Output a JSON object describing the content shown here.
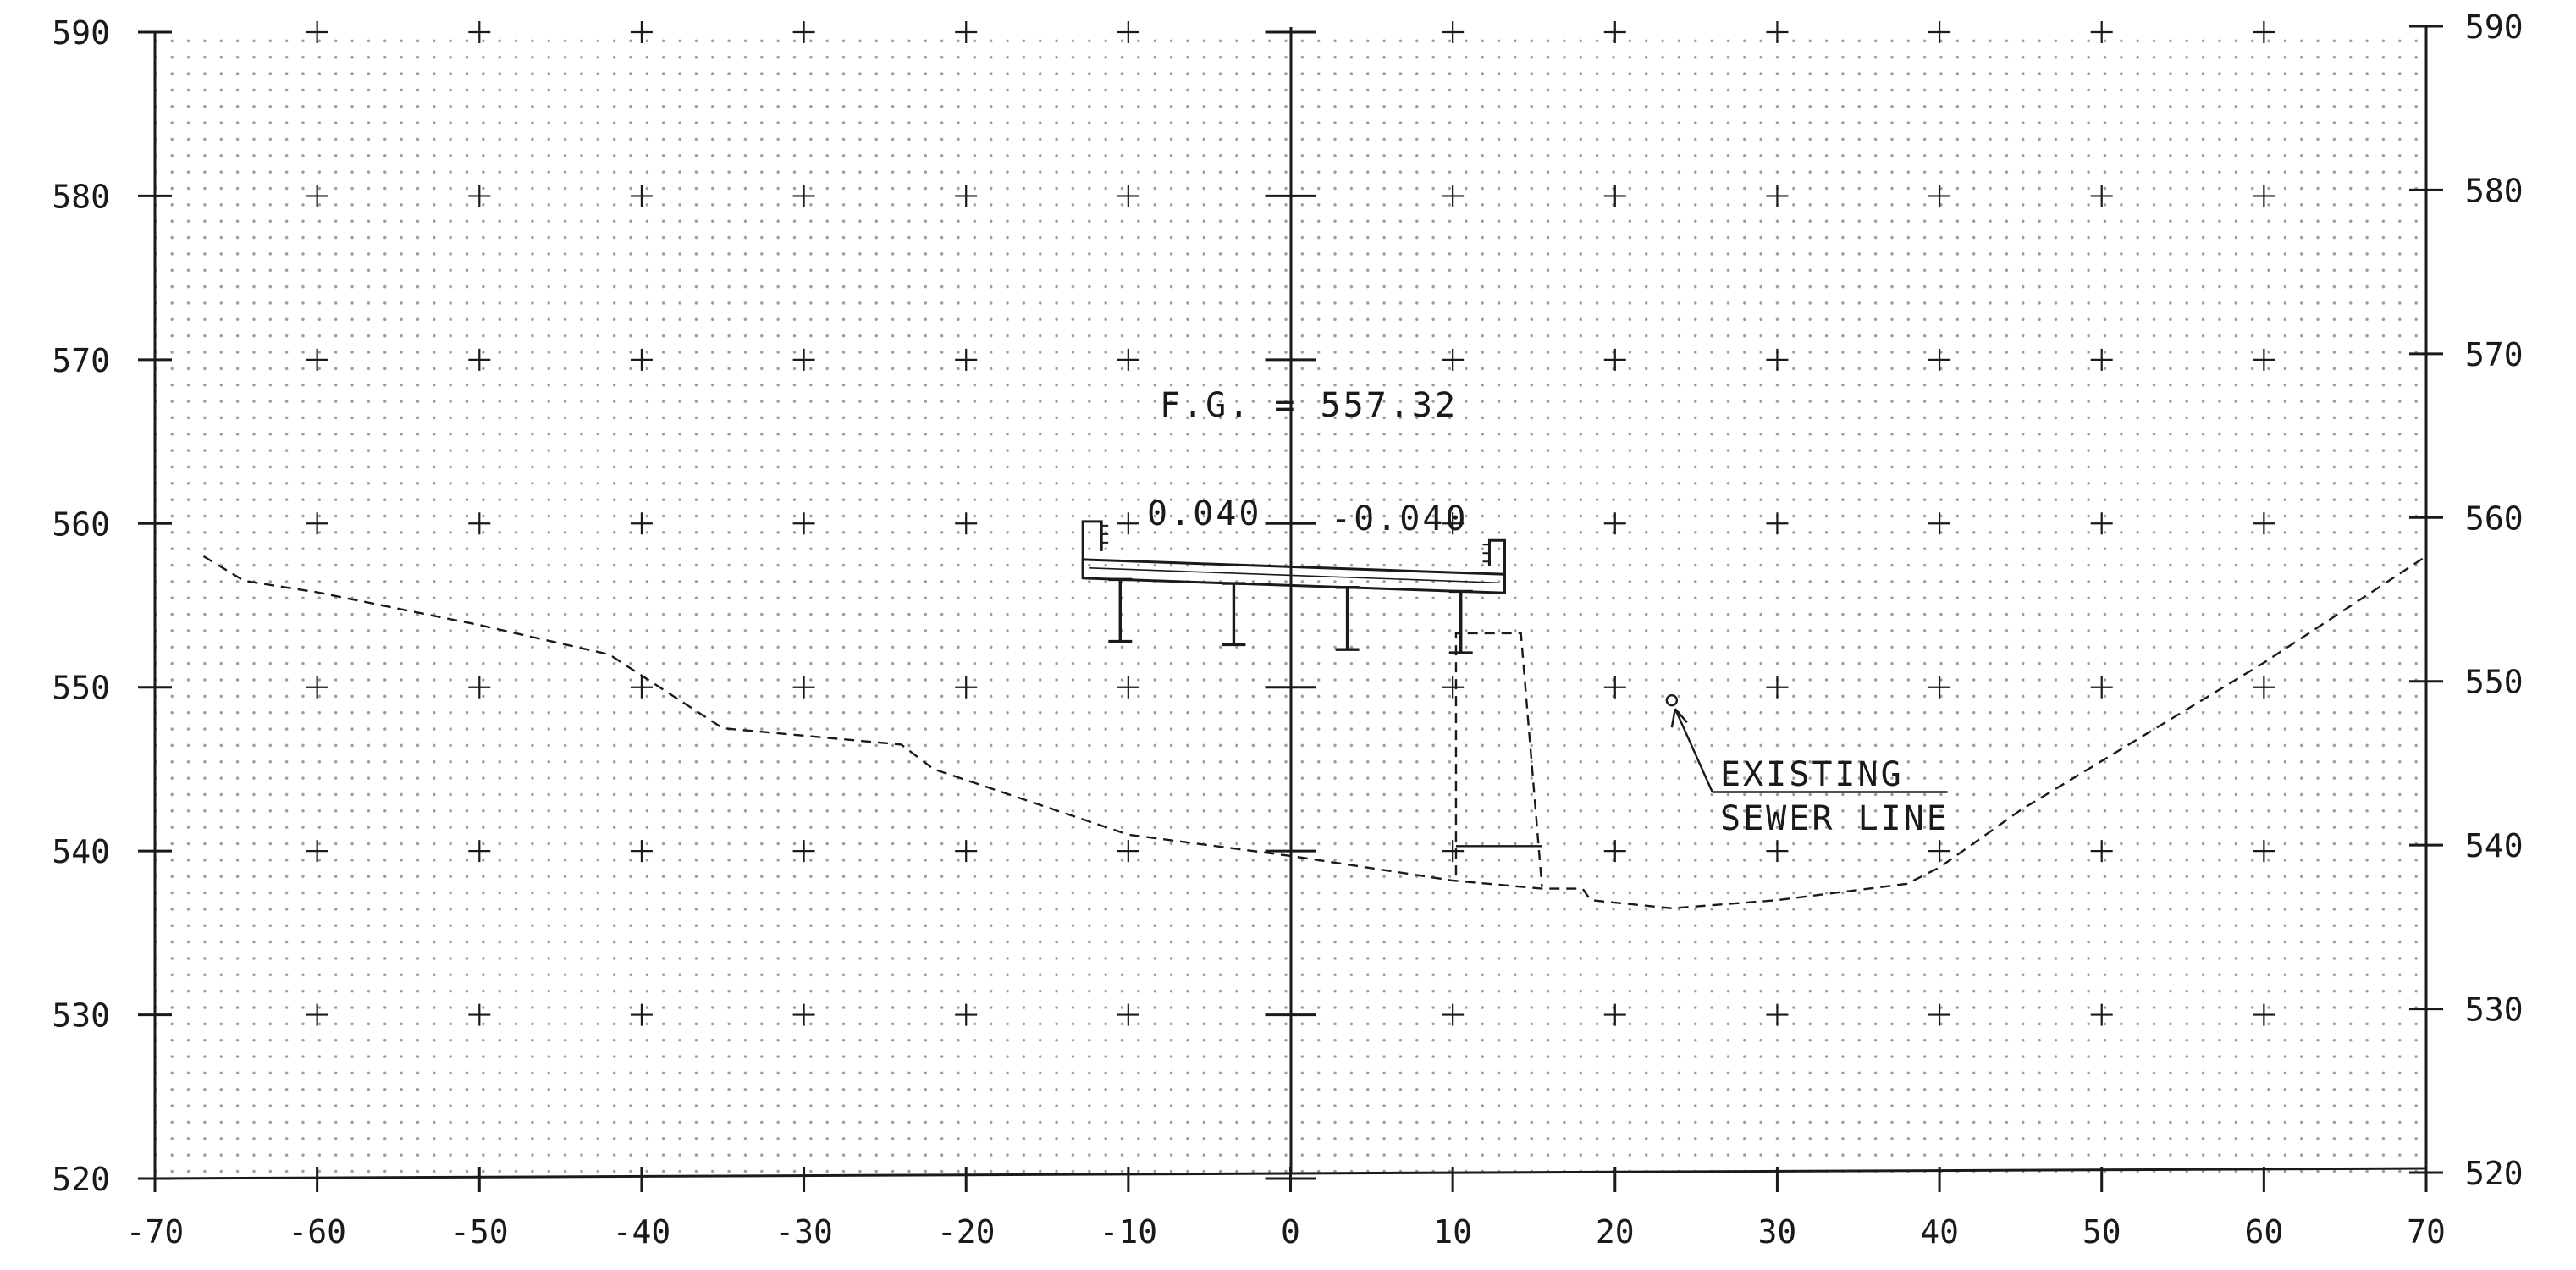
{
  "chart_data": {
    "type": "line",
    "title": "",
    "xlabel": "",
    "ylabel": "",
    "xlim": [
      -70,
      70
    ],
    "ylim": [
      520,
      590
    ],
    "x_ticks": [
      "-70",
      "-60",
      "-50",
      "-40",
      "-30",
      "-20",
      "-10",
      "0",
      "10",
      "20",
      "30",
      "40",
      "50",
      "60",
      "70"
    ],
    "y_ticks": [
      "520",
      "530",
      "540",
      "550",
      "560",
      "570",
      "580",
      "590"
    ],
    "grid": "dotted with + markers every 10 units",
    "series": [
      {
        "values_description": "existing ground profile (dashed)",
        "points": [
          [
            -67,
            558
          ],
          [
            -64.5,
            556.5
          ],
          [
            -60,
            555.8
          ],
          [
            -50,
            553.8
          ],
          [
            -42,
            552
          ],
          [
            -35,
            547.5
          ],
          [
            -24,
            546.5
          ],
          [
            -22,
            545
          ],
          [
            -10,
            541
          ],
          [
            0,
            539.7
          ],
          [
            10,
            538.2
          ],
          [
            15.5,
            537.7
          ],
          [
            18,
            537.7
          ],
          [
            18.5,
            537
          ],
          [
            23.5,
            536.5
          ],
          [
            30,
            537
          ],
          [
            38,
            538
          ],
          [
            40,
            539
          ],
          [
            45,
            542.5
          ],
          [
            50,
            545.5
          ],
          [
            55,
            548.5
          ],
          [
            60,
            551.5
          ],
          [
            70,
            558
          ]
        ]
      }
    ],
    "sewer_trench": {
      "left_x": 10.2,
      "right_x": 14.2,
      "top_y": 553.3,
      "bottom_y": 538.5,
      "base_line": [
        [
          10.2,
          540.3
        ],
        [
          15.5,
          540.3
        ]
      ]
    },
    "bridge_deck": {
      "left_x": -12.8,
      "right_x": 13.2,
      "top_left_y": 557.8,
      "top_right_y": 556.9,
      "crown_x": 0,
      "girders_x": [
        -10.5,
        -3.5,
        3.5,
        10.5
      ],
      "girder_bottom_y": [
        552.8,
        552.6,
        552.3,
        552.1
      ]
    },
    "annotations": [
      {
        "text": "F.G. = 557.32",
        "x": -8,
        "y": 567.5
      },
      {
        "text": "0.040",
        "x": -9,
        "y": 560.3
      },
      {
        "text": "-0.040",
        "x": 2.5,
        "y": 560.3
      },
      {
        "text": "EXISTING",
        "x": 26.5,
        "y": 544.6
      },
      {
        "text": "SEWER LINE",
        "x": 26.5,
        "y": 541.9
      }
    ],
    "leader": {
      "from": [
        23.5,
        549.2
      ],
      "to": [
        26,
        543.6
      ],
      "underline_to_x": 40.5
    }
  },
  "labels": {
    "fg": "F.G. = 557.32",
    "slope_left": "0.040",
    "slope_right": "-0.040",
    "sewer_1": "EXISTING",
    "sewer_2": "SEWER LINE"
  },
  "colors": {
    "ink": "#1a1a1a",
    "dot": "#9a9a9a"
  }
}
